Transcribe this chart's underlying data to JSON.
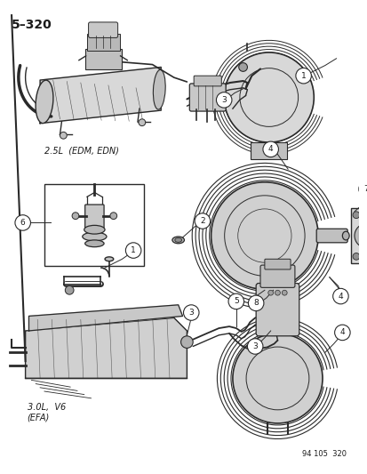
{
  "title": "5–320",
  "background_color": "#ffffff",
  "line_color": "#2a2a2a",
  "text_color": "#1a1a1a",
  "label_25L": "2.5L  (EDM, EDN)",
  "label_30L": "3.0L,  V6\n(EFA)",
  "label_bottom_right": "94 105  320",
  "fig_width": 4.14,
  "fig_height": 5.33,
  "dpi": 100
}
